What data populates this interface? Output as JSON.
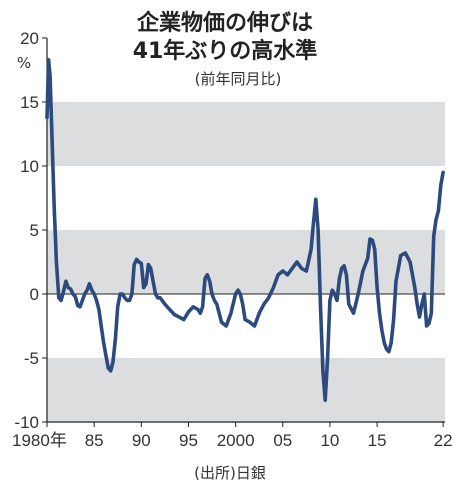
{
  "chart_data": {
    "type": "line",
    "title_line1": "企業物価の伸びは",
    "title_line2": "41年ぶりの高水準",
    "subtitle": "(前年同月比)",
    "y_unit": "%",
    "source": "(出所)日銀",
    "ylim": [
      -10,
      20
    ],
    "y_ticks": [
      "20",
      "15",
      "10",
      "5",
      "0",
      "-5",
      "-10"
    ],
    "y_tick_values": [
      20,
      15,
      10,
      5,
      0,
      -5,
      -10
    ],
    "x_ticks": [
      "1980年",
      "85",
      "90",
      "95",
      "2000",
      "05",
      "10",
      "15",
      "22"
    ],
    "x_tick_values": [
      1980,
      1985,
      1990,
      1995,
      2000,
      2005,
      2010,
      2015,
      2022
    ],
    "xlim": [
      1980,
      2022.2
    ],
    "shaded_bands": [
      [
        10,
        15
      ],
      [
        0,
        5
      ],
      [
        -10,
        -5
      ]
    ],
    "line_color": "#2c4a7e",
    "band_color": "#dcdddf",
    "series": [
      {
        "x": [
          1980.0,
          1980.17,
          1980.33,
          1980.5,
          1980.75,
          1981.0,
          1981.25,
          1981.5,
          1981.75,
          1982.0,
          1982.25,
          1982.5,
          1982.75,
          1983.0,
          1983.25,
          1983.5,
          1983.75,
          1984.0,
          1984.25,
          1984.5,
          1984.75,
          1985.0,
          1985.25,
          1985.5,
          1985.75,
          1986.0,
          1986.25,
          1986.5,
          1986.75,
          1987.0,
          1987.25,
          1987.5,
          1987.75,
          1988.0,
          1988.25,
          1988.5,
          1988.75,
          1989.0,
          1989.25,
          1989.5,
          1989.75,
          1990.0,
          1990.25,
          1990.5,
          1990.75,
          1991.0,
          1991.25,
          1991.5,
          1991.75,
          1992.0,
          1992.5,
          1993.0,
          1993.5,
          1994.0,
          1994.5,
          1995.0,
          1995.5,
          1996.0,
          1996.25,
          1996.5,
          1996.75,
          1997.0,
          1997.25,
          1997.5,
          1997.75,
          1998.0,
          1998.5,
          1999.0,
          1999.5,
          2000.0,
          2000.25,
          2000.5,
          2000.75,
          2001.0,
          2001.5,
          2002.0,
          2002.5,
          2003.0,
          2003.5,
          2004.0,
          2004.5,
          2005.0,
          2005.5,
          2006.0,
          2006.5,
          2007.0,
          2007.5,
          2008.0,
          2008.25,
          2008.5,
          2008.75,
          2009.0,
          2009.25,
          2009.5,
          2009.75,
          2010.0,
          2010.25,
          2010.5,
          2010.75,
          2011.0,
          2011.25,
          2011.5,
          2011.75,
          2012.0,
          2012.5,
          2013.0,
          2013.5,
          2014.0,
          2014.25,
          2014.5,
          2014.75,
          2015.0,
          2015.25,
          2015.5,
          2015.75,
          2016.0,
          2016.25,
          2016.5,
          2016.75,
          2017.0,
          2017.5,
          2018.0,
          2018.5,
          2019.0,
          2019.25,
          2019.5,
          2019.75,
          2020.0,
          2020.25,
          2020.5,
          2020.75,
          2021.0,
          2021.25,
          2021.5,
          2021.75,
          2022.0
        ],
        "values": [
          13.8,
          18.3,
          17.0,
          13.0,
          7.0,
          2.5,
          -0.3,
          -0.5,
          0.2,
          1.0,
          0.5,
          0.4,
          0.0,
          -0.2,
          -0.9,
          -1.0,
          -0.5,
          0.0,
          0.3,
          0.8,
          0.3,
          0.0,
          -0.5,
          -1.2,
          -2.5,
          -3.8,
          -4.8,
          -5.8,
          -6.0,
          -5.3,
          -3.5,
          -1.0,
          0.0,
          0.0,
          -0.3,
          -0.5,
          -0.5,
          0.0,
          2.3,
          2.7,
          2.5,
          2.4,
          0.5,
          0.8,
          2.3,
          2.0,
          1.0,
          0.0,
          -0.3,
          -0.3,
          -0.8,
          -1.2,
          -1.6,
          -1.8,
          -2.0,
          -1.4,
          -1.0,
          -1.2,
          -1.5,
          -1.0,
          1.2,
          1.5,
          1.0,
          0.0,
          -0.5,
          -0.8,
          -2.2,
          -2.5,
          -1.5,
          0.0,
          0.3,
          0.0,
          -0.8,
          -2.0,
          -2.2,
          -2.5,
          -1.5,
          -0.8,
          -0.3,
          0.5,
          1.5,
          1.8,
          1.5,
          2.0,
          2.5,
          2.0,
          1.8,
          3.5,
          5.5,
          7.4,
          5.0,
          -1.0,
          -6.0,
          -8.3,
          -5.0,
          -0.5,
          0.3,
          0.0,
          -0.5,
          1.2,
          2.0,
          2.2,
          1.5,
          -0.8,
          -1.5,
          0.0,
          1.8,
          2.8,
          4.3,
          4.2,
          3.5,
          0.5,
          -1.5,
          -2.8,
          -3.8,
          -4.3,
          -4.5,
          -3.8,
          -2.0,
          1.0,
          3.0,
          3.2,
          2.5,
          0.5,
          -0.8,
          -1.8,
          -0.8,
          0.0,
          -2.5,
          -2.3,
          -1.5,
          4.5,
          5.8,
          6.5,
          8.5,
          9.5
        ]
      }
    ]
  }
}
